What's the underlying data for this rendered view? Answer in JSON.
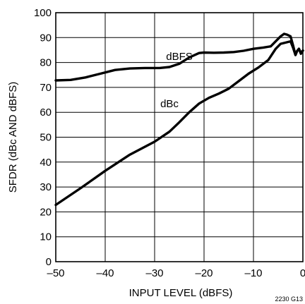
{
  "chart_data": {
    "type": "line",
    "xlabel": "INPUT LEVEL (dBFS)",
    "ylabel": "SFDR (dBc AND dBFS)",
    "xlim": [
      -50,
      0
    ],
    "ylim": [
      0,
      100
    ],
    "x_ticks": [
      -50,
      -40,
      -30,
      -20,
      -10,
      0
    ],
    "x_tick_labels": [
      "–50",
      "–40",
      "–30",
      "–20",
      "–10",
      "0"
    ],
    "y_ticks": [
      0,
      10,
      20,
      30,
      40,
      50,
      60,
      70,
      80,
      90,
      100
    ],
    "y_tick_labels": [
      "0",
      "10",
      "20",
      "30",
      "40",
      "50",
      "60",
      "70",
      "80",
      "90",
      "100"
    ],
    "grid": true,
    "figure_id": "2230 G13",
    "series": [
      {
        "name": "dBFS",
        "label_at": [
          -25,
          81
        ],
        "x": [
          -50,
          -47,
          -44,
          -41,
          -38,
          -35,
          -32,
          -29,
          -27,
          -25,
          -23,
          -21,
          -20,
          -18,
          -16,
          -14,
          -12,
          -10,
          -8,
          -6.5,
          -5.5,
          -4.5,
          -3.8,
          -3.2,
          -2.5,
          -2,
          -1.5,
          -1.2,
          -0.8,
          -0.4,
          0
        ],
        "y": [
          72.8,
          73.0,
          74.0,
          75.5,
          77.0,
          77.6,
          77.8,
          77.8,
          78.2,
          79.5,
          82.0,
          83.8,
          84.0,
          83.9,
          84.0,
          84.2,
          84.7,
          85.5,
          86.0,
          86.5,
          88.5,
          90.5,
          91.5,
          91.2,
          90.5,
          87.0,
          83.0,
          84.5,
          85.5,
          83.8,
          84.8
        ]
      },
      {
        "name": "dBc",
        "label_at": [
          -27,
          62
        ],
        "x": [
          -50,
          -45,
          -40,
          -35,
          -30,
          -27,
          -25,
          -23,
          -21,
          -19,
          -17,
          -15,
          -13,
          -11,
          -9,
          -7,
          -5.5,
          -4.5,
          -3.5,
          -2.5,
          -2,
          -1.5,
          -1.2,
          -0.8,
          -0.4,
          0
        ],
        "y": [
          22.8,
          29.5,
          36.5,
          43.0,
          48.2,
          52.2,
          56.0,
          60.0,
          63.5,
          65.8,
          67.5,
          69.5,
          72.5,
          75.5,
          78.0,
          81.0,
          85.5,
          87.5,
          88.0,
          88.5,
          86.0,
          83.0,
          84.5,
          85.5,
          83.5,
          84.8
        ]
      }
    ]
  }
}
